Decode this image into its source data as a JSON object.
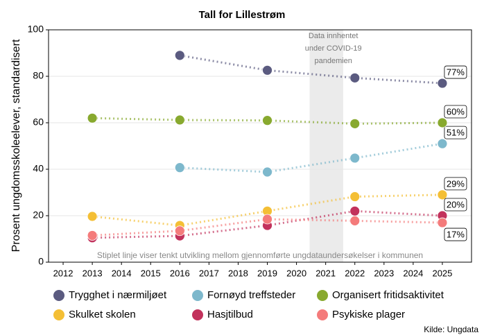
{
  "chart_data": {
    "type": "line",
    "title": "Tall for Lillestrøm",
    "y_label": "Prosent ungdomsskoleelever, standardisert",
    "x": [
      2013,
      2016,
      2019,
      2022,
      2025
    ],
    "xlim": [
      2011.5,
      2026
    ],
    "xticks": [
      2012,
      2013,
      2014,
      2015,
      2016,
      2017,
      2018,
      2019,
      2020,
      2021,
      2022,
      2023,
      2024,
      2025
    ],
    "ylim": [
      0,
      100
    ],
    "yticks": [
      0,
      20,
      40,
      60,
      80,
      100
    ],
    "grid": true,
    "legend": "bottom",
    "series": [
      {
        "name": "Trygghet i nærmiljøet",
        "color": "#5b5b80",
        "values": [
          null,
          89,
          82.6,
          79.3,
          77
        ],
        "value_labels": [
          null,
          null,
          null,
          null,
          "77%"
        ]
      },
      {
        "name": "Fornøyd treffsteder",
        "color": "#7db8cc",
        "values": [
          null,
          40.7,
          38.8,
          44.8,
          51
        ],
        "value_labels": [
          null,
          null,
          null,
          null,
          "51%"
        ]
      },
      {
        "name": "Organisert fritidsaktivitet",
        "color": "#88a92f",
        "values": [
          62,
          61.2,
          61,
          59.6,
          60
        ],
        "value_labels": [
          null,
          null,
          null,
          null,
          "60%"
        ]
      },
      {
        "name": "Skulket skolen",
        "color": "#f4bf35",
        "values": [
          19.7,
          15.8,
          22,
          28.2,
          29
        ],
        "value_labels": [
          null,
          null,
          null,
          null,
          "29%"
        ]
      },
      {
        "name": "Hasjtilbud",
        "color": "#c2325c",
        "values": [
          10.5,
          11.3,
          15.8,
          22,
          20
        ],
        "value_labels": [
          null,
          null,
          null,
          null,
          "20%"
        ]
      },
      {
        "name": "Psykiske plager",
        "color": "#f47b7b",
        "values": [
          11.5,
          13.5,
          18.5,
          17.8,
          17
        ],
        "value_labels": [
          null,
          null,
          null,
          null,
          "17%"
        ]
      }
    ],
    "covid_span": [
      2020.45,
      2021.6
    ],
    "covid_note": [
      "Data innhentet",
      "under COVID-19",
      "pandemien"
    ],
    "footnote": "Stiplet linje viser tenkt utvikling mellom gjennomførte ungdataundersøkelser i kommunen",
    "source": "Kilde: Ungdata"
  }
}
